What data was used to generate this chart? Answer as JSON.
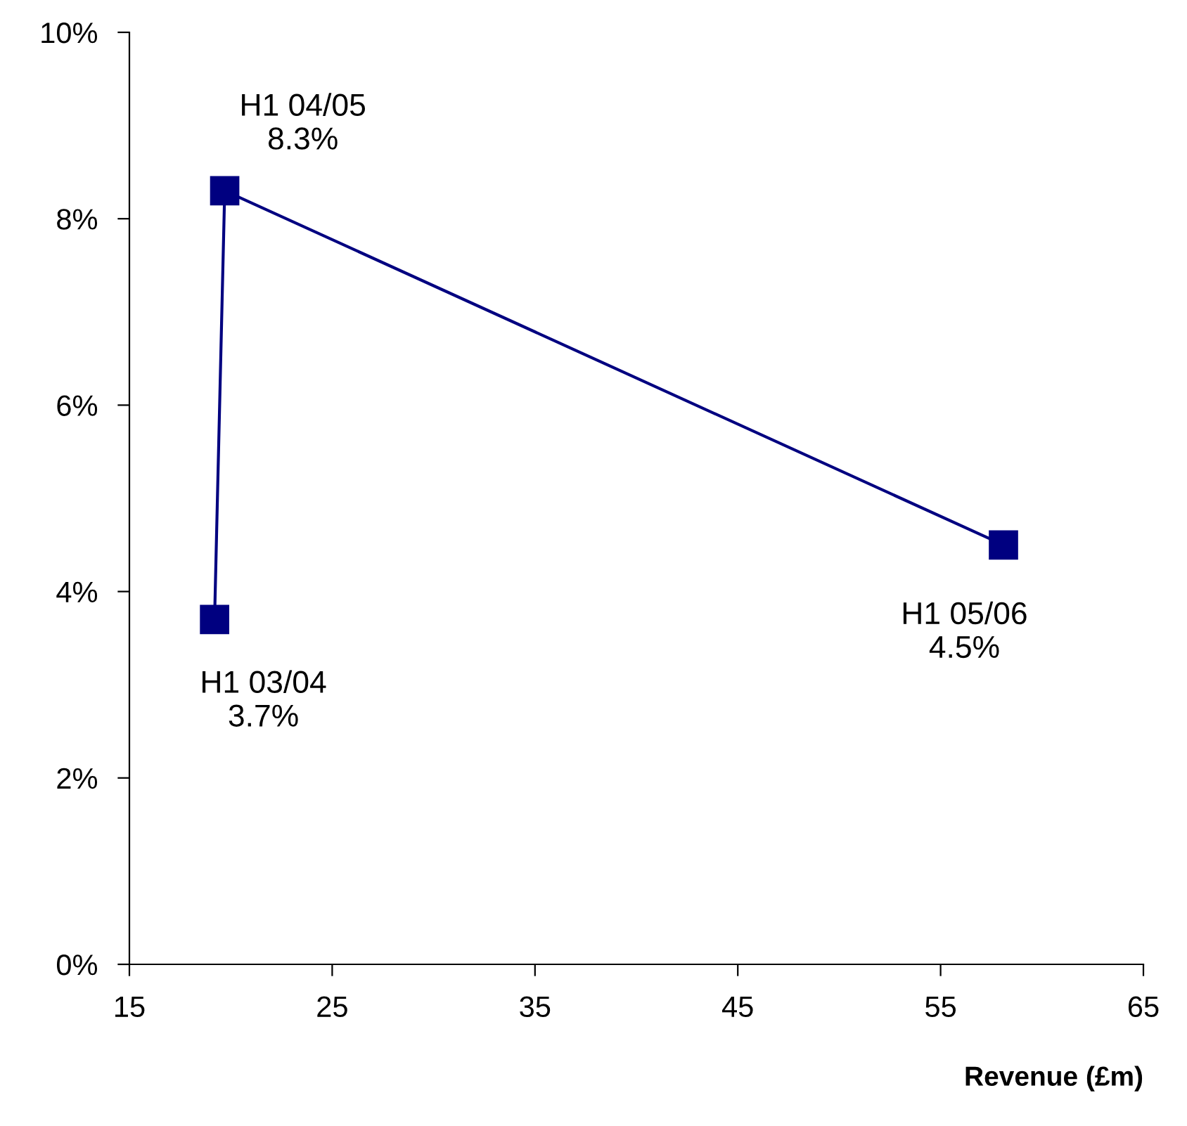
{
  "chart_data": {
    "type": "line",
    "xlabel": "Revenue (£m)",
    "x": [
      19.2,
      19.7,
      58.1
    ],
    "series": [
      {
        "color": "#000080",
        "values": [
          3.7,
          8.3,
          4.5
        ]
      }
    ],
    "marker": "square",
    "line_style": "solid",
    "grid": false,
    "legend": false,
    "xlim": [
      15,
      65
    ],
    "xticks": [
      15,
      25,
      35,
      45,
      55,
      65
    ],
    "ylim": [
      0,
      10
    ],
    "yticks": [
      {
        "value": 0,
        "label": "0%"
      },
      {
        "value": 2,
        "label": "2%"
      },
      {
        "value": 4,
        "label": "4%"
      },
      {
        "value": 6,
        "label": "6%"
      },
      {
        "value": 8,
        "label": "8%"
      },
      {
        "value": 10,
        "label": "10%"
      }
    ],
    "annotations": [
      {
        "text": "H1 03/04\n3.7%",
        "x": 19.2,
        "y": 3.7
      },
      {
        "text": "H1 04/05\n8.3%",
        "x": 19.7,
        "y": 8.3
      },
      {
        "text": "H1 05/06\n4.5%",
        "x": 58.1,
        "y": 4.5
      }
    ]
  }
}
